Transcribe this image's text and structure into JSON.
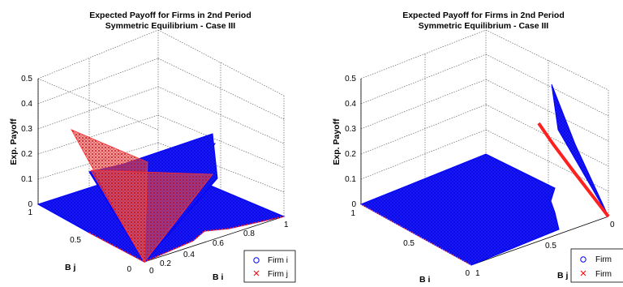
{
  "chart_data": [
    {
      "type": "scatter",
      "title": "Expected Payoff for Firms in 2nd Period",
      "subtitle": "Symmetric Equilibrium - Case III",
      "zlabel": "Exp. Payoff",
      "xlabel": "B i",
      "ylabel": "B j",
      "zlim": [
        0,
        0.5
      ],
      "z_ticks": [
        "0",
        "0.1",
        "0.2",
        "0.3",
        "0.4",
        "0.5"
      ],
      "bi_ticks": [
        "0",
        "0.2",
        "0.4",
        "0.6",
        "0.8",
        "1"
      ],
      "bj_ticks": [
        "0",
        "0.5",
        "1"
      ],
      "grid": true,
      "legend_position": "bottom-right",
      "series": [
        {
          "name": "Firm i",
          "marker": "circle",
          "color": "#0000ff"
        },
        {
          "name": "Firm j",
          "marker": "x",
          "color": "#ff0000"
        }
      ],
      "surfaces": [
        {
          "series": "Firm i",
          "points": [
            {
              "bi": 0,
              "bj": 0,
              "z": 0
            },
            {
              "bi": 0.4,
              "bj": 1,
              "z": 0.2
            },
            {
              "bi": 1,
              "bj": 0.4,
              "z": 0.22
            }
          ]
        },
        {
          "series": "Firm j",
          "points": [
            {
              "bi": 0,
              "bj": 0,
              "z": 0
            },
            {
              "bi": 1,
              "bj": 1,
              "z": 0.28
            },
            {
              "bi": 0.7,
              "bj": 1,
              "z": 0.15
            }
          ]
        },
        {
          "series": "Firm i",
          "points": [
            {
              "bi": 0,
              "bj": 1,
              "z": 0
            },
            {
              "bi": 1,
              "bj": 1,
              "z": 0
            },
            {
              "bi": 1,
              "bj": 0,
              "z": 0
            },
            {
              "bi": 0,
              "bj": 0,
              "z": 0
            }
          ]
        }
      ]
    },
    {
      "type": "scatter",
      "title": "Expected Payoff for Firms in 2nd Period",
      "subtitle": "Symmetric Equilibrium - Case III",
      "zlabel": "Exp. Payoff",
      "xlabel": "B i",
      "ylabel": "B j",
      "zlim": [
        0,
        0.5
      ],
      "z_ticks": [
        "0",
        "0.1",
        "0.2",
        "0.3",
        "0.4",
        "0.5"
      ],
      "bi_ticks": [
        "0",
        "0.5",
        "1"
      ],
      "bj_ticks": [
        "0",
        "0.5",
        "1"
      ],
      "grid": true,
      "legend_position": "bottom-right",
      "series": [
        {
          "name": "Firm",
          "marker": "circle",
          "color": "#0000ff"
        },
        {
          "name": "Firm",
          "marker": "x",
          "color": "#ff0000"
        }
      ],
      "surfaces": [
        {
          "series": "Firm i",
          "points": [
            {
              "bi": 1,
              "bj": 0,
              "z": 0
            },
            {
              "bi": 1,
              "bj": 0.62,
              "z": 0.48
            },
            {
              "bi": 1,
              "bj": 0.78,
              "z": 0.38
            }
          ]
        },
        {
          "series": "Firm j",
          "points": [
            {
              "bi": 1,
              "bj": 0,
              "z": 0
            },
            {
              "bi": 1,
              "bj": 0.72,
              "z": 0.33
            }
          ]
        },
        {
          "series": "Firm i",
          "points": [
            {
              "bi": 0,
              "bj": 0,
              "z": 0
            },
            {
              "bi": 1,
              "bj": 0,
              "z": 0
            },
            {
              "bi": 1,
              "bj": 1,
              "z": 0
            },
            {
              "bi": 0,
              "bj": 1,
              "z": 0
            }
          ]
        }
      ]
    }
  ]
}
